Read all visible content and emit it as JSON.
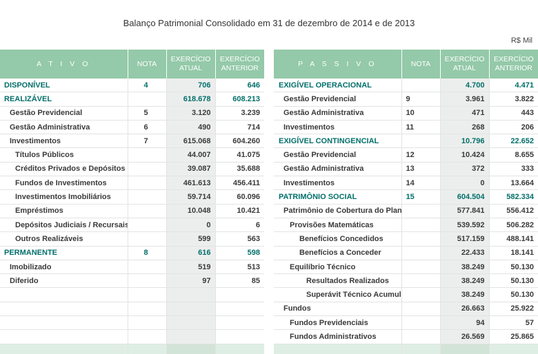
{
  "header": {
    "title": "Balanço Patrimonial Consolidado em 31 de dezembro de 2014 e de 2013",
    "unit": "R$ Mil"
  },
  "ativo": {
    "columns": [
      "A T I V O",
      "NOTA",
      "EXERCÍCIO ATUAL",
      "EXERCÍCIO ANTERIOR"
    ],
    "rows": [
      {
        "label": "DISPONÍVEL",
        "nota": "4",
        "atual": "706",
        "anterior": "646"
      },
      {
        "label": "REALIZÁVEL",
        "nota": "",
        "atual": "618.678",
        "anterior": "608.213"
      },
      {
        "label": "Gestão Previdencial",
        "nota": "5",
        "atual": "3.120",
        "anterior": "3.239"
      },
      {
        "label": "Gestão Administrativa",
        "nota": "6",
        "atual": "490",
        "anterior": "714"
      },
      {
        "label": "Investimentos",
        "nota": "7",
        "atual": "615.068",
        "anterior": "604.260"
      },
      {
        "label": "Títulos Públicos",
        "nota": "",
        "atual": "44.007",
        "anterior": "41.075"
      },
      {
        "label": "Créditos Privados e Depósitos",
        "nota": "",
        "atual": "39.087",
        "anterior": "35.688"
      },
      {
        "label": "Fundos de Investimentos",
        "nota": "",
        "atual": "461.613",
        "anterior": "456.411"
      },
      {
        "label": "Investimentos Imobiliários",
        "nota": "",
        "atual": "59.714",
        "anterior": "60.096"
      },
      {
        "label": "Empréstimos",
        "nota": "",
        "atual": "10.048",
        "anterior": "10.421"
      },
      {
        "label": "Depósitos Judiciais / Recursais",
        "nota": "",
        "atual": "0",
        "anterior": "6"
      },
      {
        "label": "Outros Realizáveis",
        "nota": "",
        "atual": "599",
        "anterior": "563"
      },
      {
        "label": "PERMANENTE",
        "nota": "8",
        "atual": "616",
        "anterior": "598"
      },
      {
        "label": "Imobilizado",
        "nota": "",
        "atual": "519",
        "anterior": "513"
      },
      {
        "label": "Diferido",
        "nota": "",
        "atual": "97",
        "anterior": "85"
      },
      {
        "label": "",
        "nota": "",
        "atual": "",
        "anterior": ""
      },
      {
        "label": "",
        "nota": "",
        "atual": "",
        "anterior": ""
      },
      {
        "label": "",
        "nota": "",
        "atual": "",
        "anterior": ""
      },
      {
        "label": "",
        "nota": "",
        "atual": "",
        "anterior": ""
      }
    ]
  },
  "passivo": {
    "columns": [
      "P A S S I V O",
      "NOTA",
      "EXERCÍCIO ATUAL",
      "EXERCÍCIO ANTERIOR"
    ],
    "rows": [
      {
        "label": "EXIGÍVEL OPERACIONAL",
        "nota": "",
        "atual": "4.700",
        "anterior": "4.471"
      },
      {
        "label": "Gestão Previdencial",
        "nota": "9",
        "atual": "3.961",
        "anterior": "3.822"
      },
      {
        "label": "Gestão Administrativa",
        "nota": "10",
        "atual": "471",
        "anterior": "443"
      },
      {
        "label": "Investimentos",
        "nota": "11",
        "atual": "268",
        "anterior": "206"
      },
      {
        "label": "EXIGÍVEL CONTINGENCIAL",
        "nota": "",
        "atual": "10.796",
        "anterior": "22.652"
      },
      {
        "label": "Gestão Previdencial",
        "nota": "12",
        "atual": "10.424",
        "anterior": "8.655"
      },
      {
        "label": "Gestão Administrativa",
        "nota": "13",
        "atual": "372",
        "anterior": "333"
      },
      {
        "label": "Investimentos",
        "nota": "14",
        "atual": "0",
        "anterior": "13.664"
      },
      {
        "label": "PATRIMÔNIO SOCIAL",
        "nota": "15",
        "atual": "604.504",
        "anterior": "582.334"
      },
      {
        "label": "Patrimônio de Cobertura do Plano",
        "nota": "",
        "atual": "577.841",
        "anterior": "556.412"
      },
      {
        "label": "Provisões Matemáticas",
        "nota": "",
        "atual": "539.592",
        "anterior": "506.282"
      },
      {
        "label": "Benefícios Concedidos",
        "nota": "",
        "atual": "517.159",
        "anterior": "488.141"
      },
      {
        "label": "Benefícios a Conceder",
        "nota": "",
        "atual": "22.433",
        "anterior": "18.141"
      },
      {
        "label": "Equilíbrio Técnico",
        "nota": "",
        "atual": "38.249",
        "anterior": "50.130"
      },
      {
        "label": "Resultados Realizados",
        "nota": "",
        "atual": "38.249",
        "anterior": "50.130"
      },
      {
        "label": "Superávit Técnico Acumulado",
        "nota": "",
        "atual": "38.249",
        "anterior": "50.130"
      },
      {
        "label": "Fundos",
        "nota": "",
        "atual": "26.663",
        "anterior": "25.922"
      },
      {
        "label": "Fundos Previdenciais",
        "nota": "",
        "atual": "94",
        "anterior": "57"
      },
      {
        "label": "Fundos Administrativos",
        "nota": "",
        "atual": "26.569",
        "anterior": "25.865"
      }
    ]
  },
  "colors": {
    "header_bg": "#94c9a9",
    "highlight_text": "#006f6a",
    "current_col_bg": "#eceeed"
  }
}
